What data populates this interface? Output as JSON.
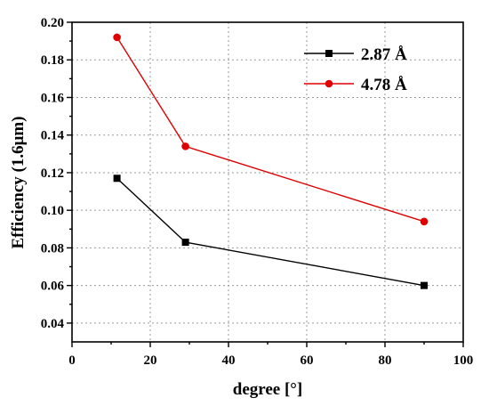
{
  "chart_data": {
    "type": "line",
    "xlabel": "degree [°]",
    "ylabel": "Efficiency (1.6μm)",
    "xlim": [
      0,
      100
    ],
    "ylim": [
      0.03,
      0.2
    ],
    "xticks": [
      0,
      20,
      40,
      60,
      80,
      100
    ],
    "yticks": [
      0.04,
      0.06,
      0.08,
      0.1,
      0.12,
      0.14,
      0.16,
      0.18,
      0.2
    ],
    "xtick_labels": [
      "0",
      "20",
      "40",
      "60",
      "80",
      "100"
    ],
    "ytick_labels": [
      "0.04",
      "0.06",
      "0.08",
      "0.10",
      "0.12",
      "0.14",
      "0.16",
      "0.18",
      "0.20"
    ],
    "grid": true,
    "legend_position": "top-right",
    "series": [
      {
        "name": "2.87 Å",
        "color": "#000000",
        "marker": "square",
        "x": [
          11.5,
          29,
          90
        ],
        "y": [
          0.117,
          0.083,
          0.06
        ]
      },
      {
        "name": "4.78 Å",
        "color": "#e00000",
        "marker": "circle",
        "x": [
          11.5,
          29,
          90
        ],
        "y": [
          0.192,
          0.134,
          0.094
        ]
      }
    ]
  }
}
